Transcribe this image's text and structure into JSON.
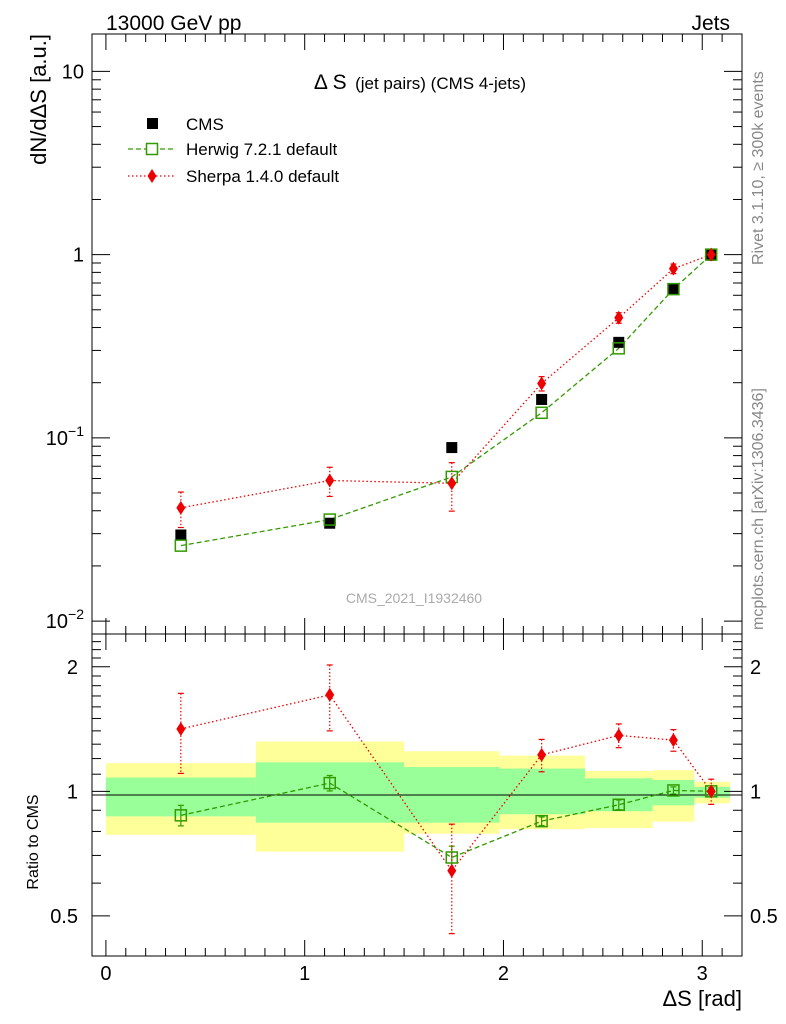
{
  "header": {
    "left": "13000 GeV pp",
    "right": "Jets"
  },
  "side_labels": {
    "rivet": "Rivet 3.1.10, ≥ 300k events",
    "mcplots": "mcplots.cern.ch [arXiv:1306.3436]"
  },
  "chart_data": {
    "type": "scatter",
    "title_main": "Δ S",
    "title_sub": "(jet pairs) (CMS 4-jets)",
    "watermark": "CMS_2021_I1932460",
    "xlabel": "ΔS [rad]",
    "ylabel_top": "dN/dΔS [a.u.]",
    "ylabel_bottom": "Ratio to CMS",
    "xlim": [
      -0.07,
      3.2
    ],
    "ylim_top": [
      0.0085,
      16
    ],
    "ylim_bottom": [
      0.4,
      2.4
    ],
    "x_ticks": [
      "0",
      "1",
      "2",
      "3"
    ],
    "y_ticks_top": [
      {
        "base": "10",
        "exp": "−2"
      },
      {
        "base": "10",
        "exp": "−1"
      },
      {
        "base": "1",
        "exp": ""
      },
      {
        "base": "10",
        "exp": ""
      }
    ],
    "y_ticks_bottom": [
      "0.5",
      "1",
      "2"
    ],
    "x": [
      0.377,
      1.126,
      1.74,
      2.192,
      2.58,
      2.855,
      3.045
    ],
    "bin_edges": [
      0,
      0.754,
      1.5,
      1.98,
      2.41,
      2.75,
      2.96,
      3.14
    ],
    "series": [
      {
        "name": "CMS",
        "values": [
          0.0295,
          0.0342,
          0.0885,
          0.162,
          0.332,
          0.648,
          1.0
        ],
        "color": "#000000"
      },
      {
        "name": "Herwig 7.2.1 default",
        "values": [
          0.0258,
          0.0358,
          0.0612,
          0.137,
          0.308,
          0.648,
          1.0
        ],
        "ratio": [
          0.875,
          1.047,
          0.692,
          0.847,
          0.928,
          1.005,
          1.0
        ],
        "ratio_err": [
          0.05,
          0.045,
          0.045,
          0.02,
          0.025,
          0.02,
          0.02
        ],
        "color": "#339900"
      },
      {
        "name": "Sherpa 1.4.0 default",
        "values": [
          0.0415,
          0.0585,
          0.0565,
          0.198,
          0.452,
          0.838,
          1.0
        ],
        "ratio": [
          1.415,
          1.71,
          0.643,
          1.225,
          1.365,
          1.33,
          1.0
        ],
        "ratio_err": [
          0.31,
          0.31,
          0.19,
          0.11,
          0.09,
          0.08,
          0.07
        ],
        "color": "#ee0000"
      }
    ],
    "uncertainty_bands": {
      "yellow": [
        [
          0.785,
          1.17
        ],
        [
          0.715,
          1.32
        ],
        [
          0.79,
          1.25
        ],
        [
          0.81,
          1.22
        ],
        [
          0.815,
          1.12
        ],
        [
          0.845,
          1.125
        ],
        [
          0.935,
          1.055
        ]
      ],
      "green": [
        [
          0.87,
          1.08
        ],
        [
          0.84,
          1.175
        ],
        [
          0.84,
          1.145
        ],
        [
          0.88,
          1.135
        ],
        [
          0.895,
          1.075
        ],
        [
          0.925,
          1.065
        ],
        [
          0.965,
          1.025
        ]
      ]
    }
  }
}
